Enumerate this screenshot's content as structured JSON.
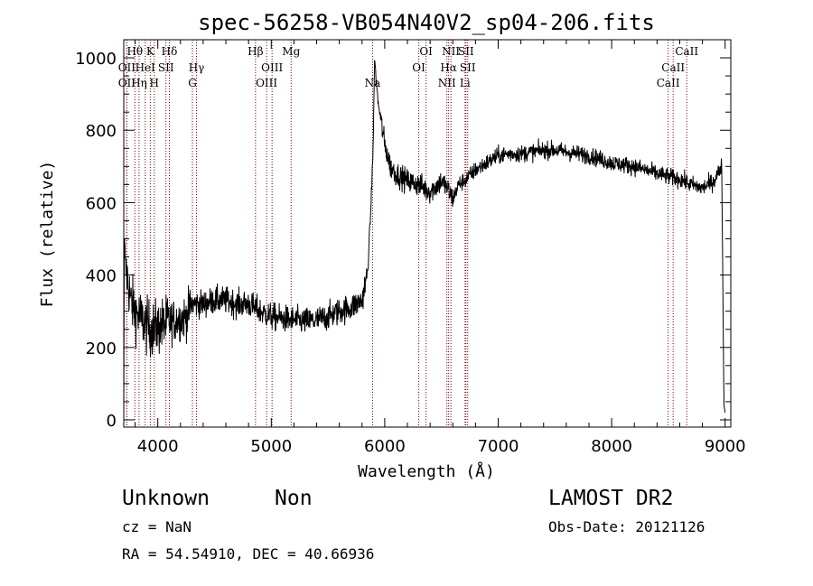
{
  "chart_data": {
    "type": "line",
    "title": "spec-56258-VB054N40V2_sp04-206.fits",
    "xlabel": "Wavelength (Å)",
    "ylabel": "Flux (relative)",
    "xlim": [
      3700,
      9050
    ],
    "ylim": [
      -20,
      1050
    ],
    "xticks": [
      4000,
      5000,
      6000,
      7000,
      8000,
      9000
    ],
    "yticks": [
      0,
      200,
      400,
      600,
      800,
      1000
    ],
    "grid": false,
    "line_color": "#000000",
    "marker_color": "#8b0000",
    "spectrum_anchors": [
      [
        3700,
        10
      ],
      [
        3705,
        500
      ],
      [
        3720,
        420
      ],
      [
        3760,
        330
      ],
      [
        3800,
        300
      ],
      [
        3850,
        280
      ],
      [
        3900,
        260
      ],
      [
        3950,
        250
      ],
      [
        4000,
        255
      ],
      [
        4100,
        270
      ],
      [
        4200,
        280
      ],
      [
        4250,
        285
      ],
      [
        4300,
        320
      ],
      [
        4400,
        320
      ],
      [
        4500,
        330
      ],
      [
        4600,
        330
      ],
      [
        4700,
        320
      ],
      [
        4800,
        320
      ],
      [
        4900,
        300
      ],
      [
        5000,
        285
      ],
      [
        5100,
        280
      ],
      [
        5200,
        275
      ],
      [
        5300,
        272
      ],
      [
        5400,
        275
      ],
      [
        5500,
        285
      ],
      [
        5600,
        300
      ],
      [
        5700,
        310
      ],
      [
        5800,
        330
      ],
      [
        5850,
        410
      ],
      [
        5880,
        600
      ],
      [
        5900,
        780
      ],
      [
        5910,
        1000
      ],
      [
        5920,
        960
      ],
      [
        5940,
        880
      ],
      [
        5970,
        820
      ],
      [
        6000,
        760
      ],
      [
        6050,
        700
      ],
      [
        6100,
        680
      ],
      [
        6200,
        660
      ],
      [
        6300,
        650
      ],
      [
        6400,
        630
      ],
      [
        6500,
        660
      ],
      [
        6550,
        640
      ],
      [
        6600,
        610
      ],
      [
        6650,
        650
      ],
      [
        6700,
        660
      ],
      [
        6800,
        690
      ],
      [
        6900,
        710
      ],
      [
        7000,
        730
      ],
      [
        7100,
        735
      ],
      [
        7200,
        735
      ],
      [
        7300,
        740
      ],
      [
        7400,
        745
      ],
      [
        7500,
        745
      ],
      [
        7600,
        740
      ],
      [
        7700,
        735
      ],
      [
        7800,
        730
      ],
      [
        7900,
        720
      ],
      [
        8000,
        710
      ],
      [
        8100,
        705
      ],
      [
        8200,
        700
      ],
      [
        8300,
        690
      ],
      [
        8400,
        680
      ],
      [
        8500,
        672
      ],
      [
        8600,
        665
      ],
      [
        8700,
        650
      ],
      [
        8800,
        640
      ],
      [
        8900,
        660
      ],
      [
        8970,
        700
      ],
      [
        8990,
        40
      ],
      [
        9000,
        20
      ]
    ],
    "spectral_lines": [
      {
        "wavelength": 3727,
        "label": "OII",
        "level": 1
      },
      {
        "wavelength": 3727,
        "label": "OII",
        "level": 2
      },
      {
        "wavelength": 3798,
        "label": "Hθ",
        "level": 0
      },
      {
        "wavelength": 3835,
        "label": "Hη",
        "level": 2
      },
      {
        "wavelength": 3889,
        "label": "HeI",
        "level": 1
      },
      {
        "wavelength": 3934,
        "label": "K",
        "level": 0
      },
      {
        "wavelength": 3969,
        "label": "H",
        "level": 2
      },
      {
        "wavelength": 4072,
        "label": "SII",
        "level": 1
      },
      {
        "wavelength": 4102,
        "label": "Hδ",
        "level": 0
      },
      {
        "wavelength": 4305,
        "label": "G",
        "level": 2
      },
      {
        "wavelength": 4341,
        "label": "Hγ",
        "level": 1
      },
      {
        "wavelength": 4861,
        "label": "Hβ",
        "level": 0
      },
      {
        "wavelength": 4959,
        "label": "OIII",
        "level": 2
      },
      {
        "wavelength": 5007,
        "label": "OIII",
        "level": 1
      },
      {
        "wavelength": 5175,
        "label": "Mg",
        "level": 0
      },
      {
        "wavelength": 5893,
        "label": "Na",
        "level": 2
      },
      {
        "wavelength": 6300,
        "label": "OI",
        "level": 1
      },
      {
        "wavelength": 6364,
        "label": "OI",
        "level": 0
      },
      {
        "wavelength": 6548,
        "label": "NII",
        "level": 2
      },
      {
        "wavelength": 6563,
        "label": "Hα",
        "level": 1
      },
      {
        "wavelength": 6583,
        "label": "NII",
        "level": 0
      },
      {
        "wavelength": 6708,
        "label": "Li",
        "level": 2
      },
      {
        "wavelength": 6716,
        "label": "SII",
        "level": 0
      },
      {
        "wavelength": 6731,
        "label": "SII",
        "level": 1
      },
      {
        "wavelength": 8498,
        "label": "CaII",
        "level": 2
      },
      {
        "wavelength": 8542,
        "label": "CaII",
        "level": 1
      },
      {
        "wavelength": 8662,
        "label": "CaII",
        "level": 0
      }
    ]
  },
  "info": {
    "object_class": "Unknown",
    "object_subclass": "Non",
    "survey": "LAMOST DR2",
    "redshift": "cz = NaN",
    "obs_date": "Obs-Date: 20121126",
    "coords": "RA =  54.54910, DEC =  40.66936"
  }
}
